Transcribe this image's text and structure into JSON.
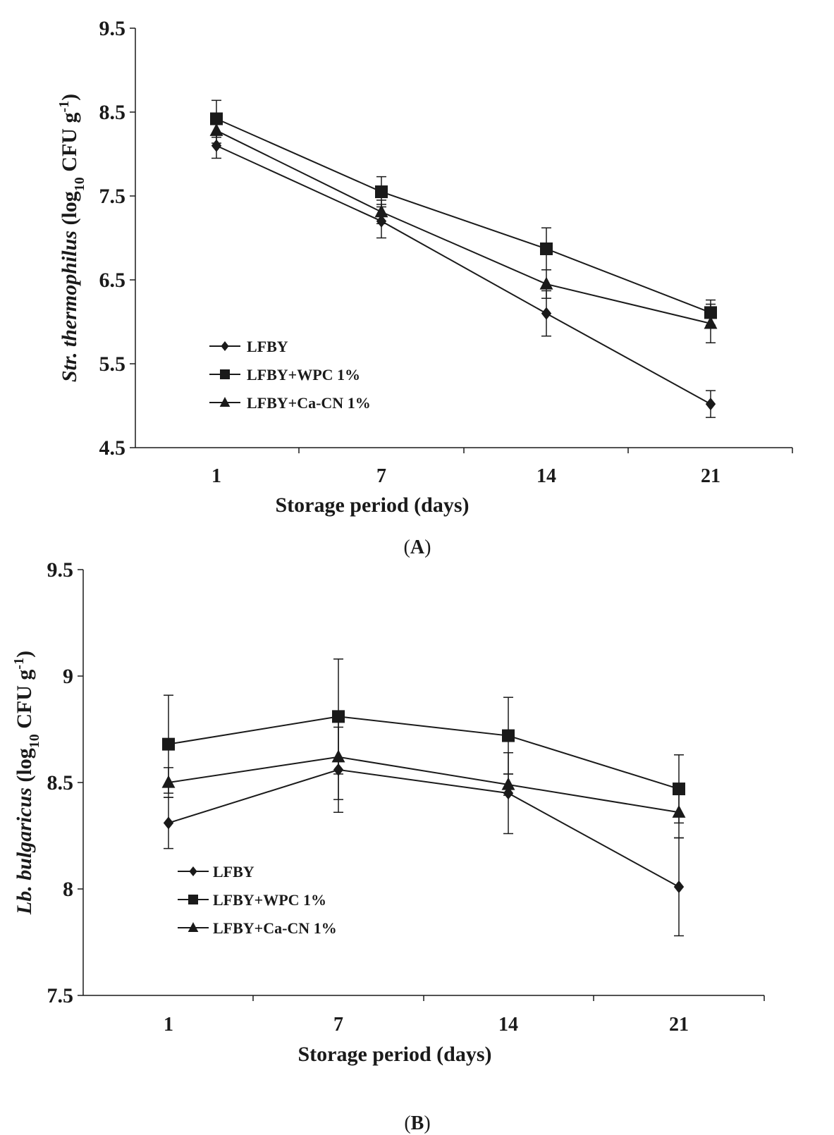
{
  "panels": [
    {
      "panel_label_prefix": "(",
      "panel_label_letter": "A",
      "panel_label_suffix": ")"
    },
    {
      "panel_label_prefix": "(",
      "panel_label_letter": "B",
      "panel_label_suffix": ")"
    }
  ],
  "chart_data": [
    {
      "type": "line",
      "title": "",
      "xlabel": "Storage period (days)",
      "ylabel_italic": "Str. thermophilus",
      "ylabel_unit_open": " (log",
      "ylabel_unit_sub": "10",
      "ylabel_unit_mid": " CFU g",
      "ylabel_unit_sup": "-1",
      "ylabel_unit_close": ")",
      "categories": [
        "1",
        "7",
        "14",
        "21"
      ],
      "ylim": [
        4.5,
        9.5
      ],
      "yticks": [
        "4.5",
        "5.5",
        "6.5",
        "7.5",
        "8.5",
        "9.5"
      ],
      "grid": false,
      "legend_position": "bottom-left",
      "series": [
        {
          "name": "LFBY",
          "marker": "diamond",
          "values": [
            8.1,
            7.2,
            6.1,
            5.02
          ],
          "errors": [
            0.15,
            0.2,
            0.27,
            0.16
          ]
        },
        {
          "name": "LFBY+WPC 1%",
          "marker": "square",
          "values": [
            8.42,
            7.55,
            6.87,
            6.11
          ],
          "errors": [
            0.22,
            0.18,
            0.25,
            0.15
          ]
        },
        {
          "name": "LFBY+Ca-CN 1%",
          "marker": "triangle",
          "values": [
            8.28,
            7.31,
            6.45,
            5.98
          ],
          "errors": [
            0.15,
            0.14,
            0.17,
            0.23
          ]
        }
      ]
    },
    {
      "type": "line",
      "title": "",
      "xlabel": "Storage period (days)",
      "ylabel_italic": "Lb. bulgaricus",
      "ylabel_unit_open": " (log",
      "ylabel_unit_sub": "10",
      "ylabel_unit_mid": " CFU g",
      "ylabel_unit_sup": "-1",
      "ylabel_unit_close": ")",
      "categories": [
        "1",
        "7",
        "14",
        "21"
      ],
      "ylim": [
        7.5,
        9.5
      ],
      "yticks": [
        "7.5",
        "8",
        "8.5",
        "9",
        "9.5"
      ],
      "grid": false,
      "legend_position": "bottom-left",
      "series": [
        {
          "name": "LFBY",
          "marker": "diamond",
          "values": [
            8.31,
            8.56,
            8.45,
            8.01
          ],
          "errors": [
            0.12,
            0.2,
            0.19,
            0.23
          ]
        },
        {
          "name": "LFBY+WPC 1%",
          "marker": "square",
          "values": [
            8.68,
            8.81,
            8.72,
            8.47
          ],
          "errors": [
            0.23,
            0.27,
            0.18,
            0.16
          ]
        },
        {
          "name": "LFBY+Ca-CN 1%",
          "marker": "triangle",
          "values": [
            8.5,
            8.62,
            8.49,
            8.36
          ],
          "errors": [
            0.07,
            0.2,
            0.05,
            0.12
          ]
        }
      ]
    }
  ],
  "colors": {
    "ink": "#1a1a1a",
    "background": "#ffffff"
  }
}
